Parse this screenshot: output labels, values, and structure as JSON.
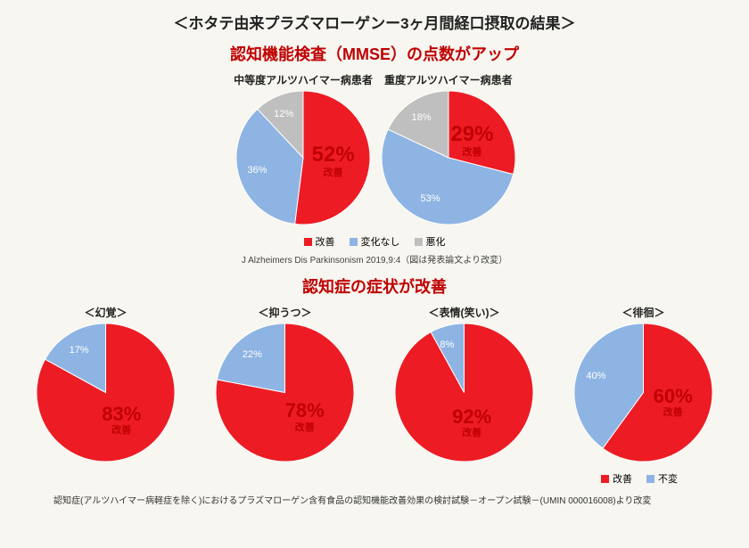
{
  "colors": {
    "improved": "#ed1c24",
    "no_change": "#8eb4e3",
    "worse": "#bfbfbf",
    "title_red": "#c00000",
    "text": "#222222",
    "background": "#f7f6f0"
  },
  "main_title": "＜ホタテ由来プラズマローゲンー3ヶ月間経口摂取の結果＞",
  "section1": {
    "title": "認知機能検査（MMSE）の点数がアップ",
    "charts": [
      {
        "label": "中等度アルツハイマー病患者",
        "type": "pie",
        "diameter": 150,
        "slices": [
          {
            "name": "改善",
            "value": 52,
            "color": "#ed1c24",
            "label_color": "#c00000",
            "is_main": true
          },
          {
            "name": "変化なし",
            "value": 36,
            "color": "#8eb4e3",
            "label_color": "#ffffff"
          },
          {
            "name": "悪化",
            "value": 12,
            "color": "#bfbfbf",
            "label_color": "#ffffff"
          }
        ]
      },
      {
        "label": "重度アルツハイマー病患者",
        "type": "pie",
        "diameter": 150,
        "slices": [
          {
            "name": "改善",
            "value": 29,
            "color": "#ed1c24",
            "label_color": "#c00000",
            "is_main": true
          },
          {
            "name": "変化なし",
            "value": 53,
            "color": "#8eb4e3",
            "label_color": "#ffffff"
          },
          {
            "name": "悪化",
            "value": 18,
            "color": "#bfbfbf",
            "label_color": "#ffffff"
          }
        ]
      }
    ],
    "legend": [
      {
        "label": "改善",
        "color": "#ed1c24"
      },
      {
        "label": "変化なし",
        "color": "#8eb4e3"
      },
      {
        "label": "悪化",
        "color": "#bfbfbf"
      }
    ],
    "citation": "J Alzheimers Dis Parkinsonism 2019,9:4（図は発表論文より改変）"
  },
  "section2": {
    "title": "認知症の症状が改善",
    "charts": [
      {
        "label": "＜幻覚＞",
        "type": "pie",
        "diameter": 150,
        "slices": [
          {
            "name": "改善",
            "value": 83,
            "color": "#ed1c24",
            "label_color": "#c00000",
            "is_main": true
          },
          {
            "name": "不変",
            "value": 17,
            "color": "#8eb4e3",
            "label_color": "#ffffff"
          }
        ]
      },
      {
        "label": "＜抑うつ＞",
        "type": "pie",
        "diameter": 150,
        "slices": [
          {
            "name": "改善",
            "value": 78,
            "color": "#ed1c24",
            "label_color": "#c00000",
            "is_main": true
          },
          {
            "name": "不変",
            "value": 22,
            "color": "#8eb4e3",
            "label_color": "#ffffff"
          }
        ]
      },
      {
        "label": "＜表情(笑い)＞",
        "type": "pie",
        "diameter": 150,
        "slices": [
          {
            "name": "改善",
            "value": 92,
            "color": "#ed1c24",
            "label_color": "#c00000",
            "is_main": true
          },
          {
            "name": "不変",
            "value": 8,
            "color": "#8eb4e3",
            "label_color": "#ffffff"
          }
        ]
      },
      {
        "label": "＜徘徊＞",
        "type": "pie",
        "diameter": 150,
        "slices": [
          {
            "name": "改善",
            "value": 60,
            "color": "#ed1c24",
            "label_color": "#c00000",
            "is_main": true
          },
          {
            "name": "不変",
            "value": 40,
            "color": "#8eb4e3",
            "label_color": "#ffffff"
          }
        ]
      }
    ],
    "legend": [
      {
        "label": "改善",
        "color": "#ed1c24"
      },
      {
        "label": "不変",
        "color": "#8eb4e3"
      }
    ]
  },
  "footnote": "認知症(アルツハイマー病軽症を除く)におけるプラズマローゲン含有食品の認知機能改善効果の検討試験－オープン試験－(UMIN 000016008)より改変"
}
